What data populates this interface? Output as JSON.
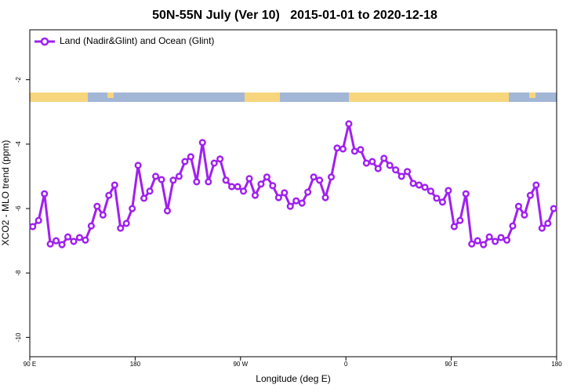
{
  "chart_data": {
    "type": "line",
    "title": "50N-55N July (Ver 10)   2015-01-01 to 2020-12-18",
    "xlabel": "Longitude (deg E)",
    "ylabel": "XCO2 - MLO trend (ppm)",
    "xlim": [
      90,
      540
    ],
    "ylim": [
      -10.6,
      -0.45
    ],
    "xticks": [
      {
        "value": 90,
        "label": "90 E"
      },
      180,
      {
        "value": 270,
        "label": "90 W"
      },
      {
        "value": 360,
        "label": "0"
      },
      {
        "value": 450,
        "label": "90 E"
      },
      {
        "value": 540,
        "label": "180"
      }
    ],
    "yticks": [
      -2,
      -4,
      -6,
      -8,
      -10
    ],
    "legend": "top-left",
    "x": [
      92.5,
      97.5,
      102.5,
      107.5,
      112.5,
      117.5,
      122.5,
      127.5,
      132.5,
      137.5,
      142.5,
      147.5,
      152.5,
      157.5,
      162.5,
      167.5,
      172.5,
      177.5,
      182.5,
      187.5,
      192.5,
      197.5,
      202.5,
      207.5,
      212.5,
      217.5,
      222.5,
      227.5,
      232.5,
      237.5,
      242.5,
      247.5,
      252.5,
      257.5,
      262.5,
      267.5,
      272.5,
      277.5,
      282.5,
      287.5,
      292.5,
      297.5,
      302.5,
      307.5,
      312.5,
      317.5,
      322.5,
      327.5,
      332.5,
      337.5,
      342.5,
      347.5,
      352.5,
      357.5,
      362.5,
      367.5,
      372.5,
      377.5,
      382.5,
      387.5,
      392.5,
      397.5,
      402.5,
      407.5,
      412.5,
      417.5,
      422.5,
      427.5,
      432.5,
      437.5,
      442.5,
      447.5,
      452.5,
      457.5,
      462.5,
      467.5,
      472.5,
      477.5,
      482.5,
      487.5,
      492.5,
      497.5,
      502.5,
      507.5,
      512.5,
      517.5,
      522.5,
      527.5,
      532.5,
      537.5
    ],
    "series": [
      {
        "name": "Land (Nadir&Glint) and Ocean (Glint)",
        "color": "#a020f0",
        "values": [
          -6.56,
          -6.37,
          -5.54,
          -7.1,
          -7.0,
          -7.12,
          -6.88,
          -7.02,
          -6.9,
          -6.98,
          -6.54,
          -5.93,
          -6.2,
          -5.59,
          -5.27,
          -6.61,
          -6.46,
          -6.0,
          -4.66,
          -5.68,
          -5.46,
          -5.0,
          -5.1,
          -6.07,
          -5.12,
          -5.0,
          -4.54,
          -4.39,
          -5.17,
          -3.95,
          -5.17,
          -4.59,
          -4.46,
          -5.12,
          -5.32,
          -5.32,
          -5.46,
          -5.07,
          -5.59,
          -5.24,
          -5.02,
          -5.29,
          -5.66,
          -5.51,
          -5.93,
          -5.76,
          -5.83,
          -5.49,
          -5.02,
          -5.12,
          -5.66,
          -5.02,
          -4.12,
          -4.15,
          -3.37,
          -4.22,
          -4.17,
          -4.59,
          -4.54,
          -4.76,
          -4.44,
          -4.66,
          -4.8,
          -5.0,
          -4.85,
          -5.22,
          -5.27,
          -5.34,
          -5.46,
          -5.68,
          -5.8,
          -5.44,
          -6.56,
          -6.37,
          -5.54,
          -7.1,
          -7.0,
          -7.12,
          -6.88,
          -7.02,
          -6.9,
          -6.98,
          -6.54,
          -5.93,
          -6.2,
          -5.59,
          -5.27,
          -6.61,
          -6.46,
          -6.0
        ]
      }
    ]
  }
}
